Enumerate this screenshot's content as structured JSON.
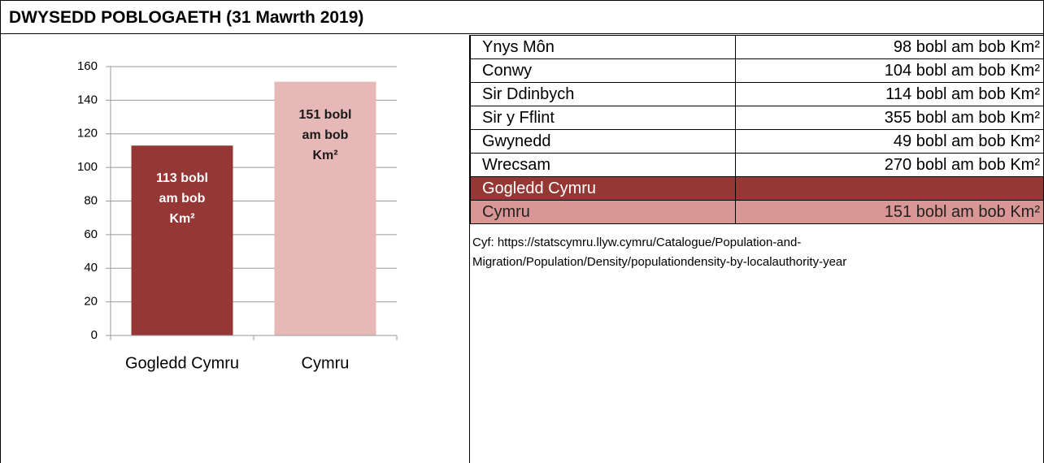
{
  "header": {
    "title": "DWYSEDD POBLOGAETH (31 Mawrth 2019)"
  },
  "chart_data": {
    "type": "bar",
    "categories": [
      "Gogledd Cymru",
      "Cymru"
    ],
    "values": [
      113,
      151
    ],
    "value_labels": [
      "113 bobl am bob Km²",
      "151 bobl am bob Km²"
    ],
    "colors": [
      "#953735",
      "#e6b9b8"
    ],
    "value_label_colors": [
      "#ffffff",
      "#1a1a1a"
    ],
    "ylim": [
      0,
      160
    ],
    "yticks": [
      0,
      20,
      40,
      60,
      80,
      100,
      120,
      140,
      160
    ],
    "grid": true
  },
  "table": {
    "rows": [
      [
        "Ynys Môn",
        "98 bobl am bob Km²"
      ],
      [
        "Conwy",
        "104 bobl am bob Km²"
      ],
      [
        "Sir Ddinbych",
        "114 bobl am bob Km²"
      ],
      [
        "Sir y Fflint",
        "355 bobl am bob Km²"
      ],
      [
        "Gwynedd",
        "49 bobl am bob Km²"
      ],
      [
        "Wrecsam",
        "270 bobl am bob Km²"
      ],
      [
        "Gogledd Cymru"
      ],
      [
        "Cymru",
        "151 bobl am bob Km²"
      ]
    ],
    "source": "Cyf: https://statscymru.llyw.cymru/Catalogue/Population-and-Migration/Population/Density/populationdensity-by-localauthority-year"
  }
}
